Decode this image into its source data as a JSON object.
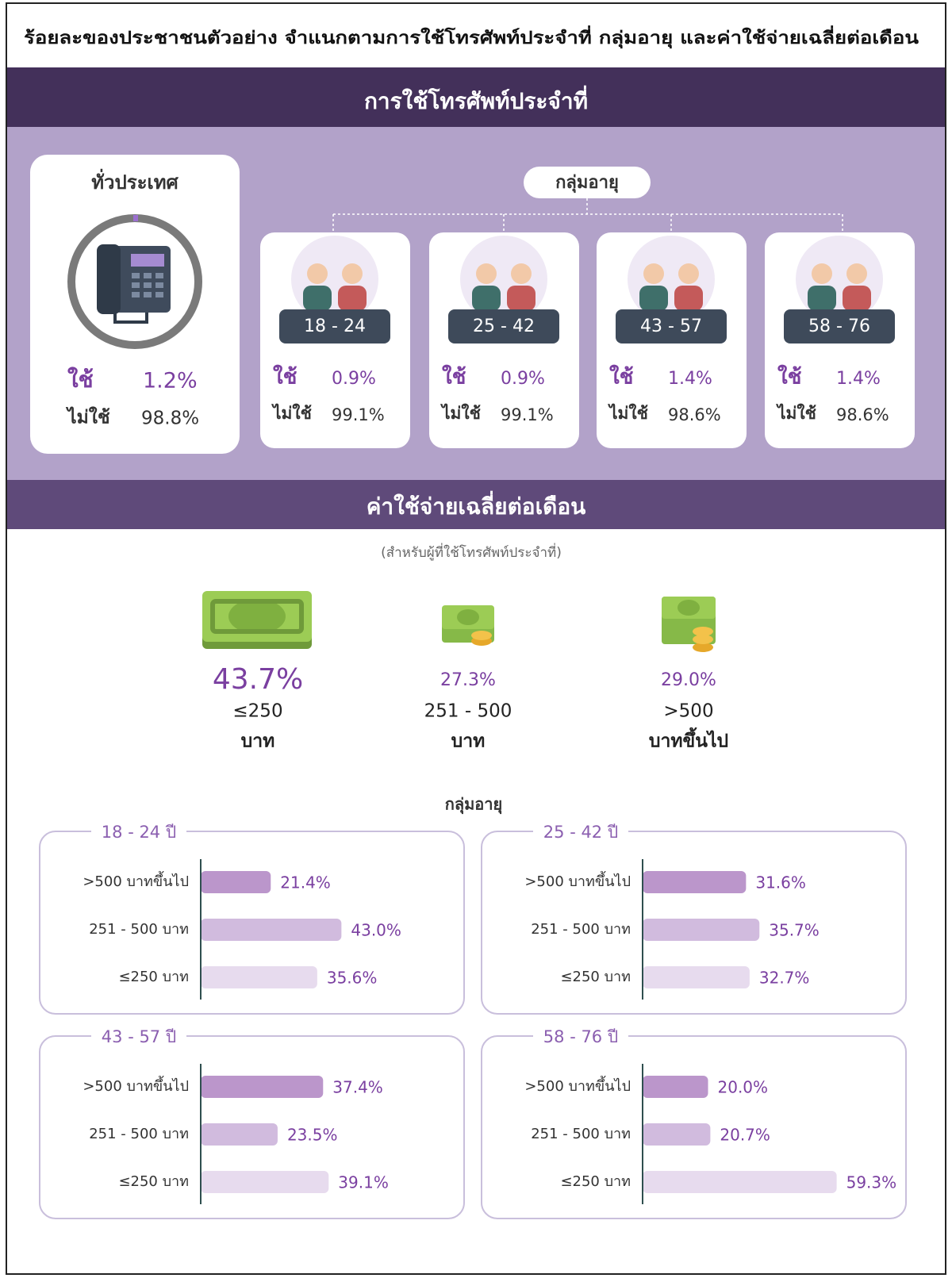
{
  "title": "ร้อยละของประชาชนตัวอย่าง จำแนกตามการใช้โทรศัพท์ประจำที่ กลุ่มอายุ และค่าใช้จ่ายเฉลี่ยต่อเดือน",
  "fixed_line": {
    "heading": "การใช้โทรศัพท์ประจำที่",
    "national": {
      "label": "ทั่วประเทศ",
      "use_label": "ใช้",
      "use": "1.2%",
      "nonuse_label": "ไม่ใช้",
      "nonuse": "98.8%"
    },
    "age_heading": "กลุ่มอายุ",
    "age_groups": [
      {
        "label": "18 - 24",
        "use_label": "ใช้",
        "use": "0.9%",
        "nonuse_label": "ไม่ใช้",
        "nonuse": "99.1%"
      },
      {
        "label": "25 - 42",
        "use_label": "ใช้",
        "use": "0.9%",
        "nonuse_label": "ไม่ใช้",
        "nonuse": "99.1%"
      },
      {
        "label": "43 - 57",
        "use_label": "ใช้",
        "use": "1.4%",
        "nonuse_label": "ไม่ใช้",
        "nonuse": "98.6%"
      },
      {
        "label": "58 - 76",
        "use_label": "ใช้",
        "use": "1.4%",
        "nonuse_label": "ไม่ใช้",
        "nonuse": "98.6%"
      }
    ]
  },
  "expense": {
    "heading": "ค่าใช้จ่ายเฉลี่ยต่อเดือน",
    "note": "(สำหรับผู้ที่ใช้โทรศัพท์ประจำที่)",
    "levels": [
      {
        "value": "43.7%",
        "label": "≤250",
        "unit": "บาท"
      },
      {
        "value": "27.3%",
        "label": "251 - 500",
        "unit": "บาท"
      },
      {
        "value": "29.0%",
        "label": ">500",
        "unit": "บาทขึ้นไป"
      }
    ],
    "age_heading": "กลุ่มอายุ"
  },
  "chart_data": [
    {
      "type": "bar",
      "title": "18 - 24 ปี",
      "categories": [
        ">500 บาทขึ้นไป",
        "251 - 500 บาท",
        "≤250 บาท"
      ],
      "values": [
        21.4,
        43.0,
        35.6
      ],
      "value_labels": [
        "21.4%",
        "43.0%",
        "35.6%"
      ],
      "colors": [
        "#bb96cb",
        "#d1bbde",
        "#e7dbee"
      ],
      "xlim": [
        0,
        80
      ]
    },
    {
      "type": "bar",
      "title": "25 - 42 ปี",
      "categories": [
        ">500 บาทขึ้นไป",
        "251 - 500 บาท",
        "≤250 บาท"
      ],
      "values": [
        31.6,
        35.7,
        32.7
      ],
      "value_labels": [
        "31.6%",
        "35.7%",
        "32.7%"
      ],
      "colors": [
        "#bb96cb",
        "#d1bbde",
        "#e7dbee"
      ],
      "xlim": [
        0,
        80
      ]
    },
    {
      "type": "bar",
      "title": "43 - 57 ปี",
      "categories": [
        ">500 บาทขึ้นไป",
        "251 - 500 บาท",
        "≤250 บาท"
      ],
      "values": [
        37.4,
        23.5,
        39.1
      ],
      "value_labels": [
        "37.4%",
        "23.5%",
        "39.1%"
      ],
      "colors": [
        "#bb96cb",
        "#d1bbde",
        "#e7dbee"
      ],
      "xlim": [
        0,
        80
      ]
    },
    {
      "type": "bar",
      "title": "58 - 76 ปี",
      "categories": [
        ">500 บาทขึ้นไป",
        "251 - 500 บาท",
        "≤250 บาท"
      ],
      "values": [
        20.0,
        20.7,
        59.3
      ],
      "value_labels": [
        "20.0%",
        "20.7%",
        "59.3%"
      ],
      "colors": [
        "#bb96cb",
        "#d1bbde",
        "#e7dbee"
      ],
      "xlim": [
        0,
        80
      ]
    }
  ]
}
